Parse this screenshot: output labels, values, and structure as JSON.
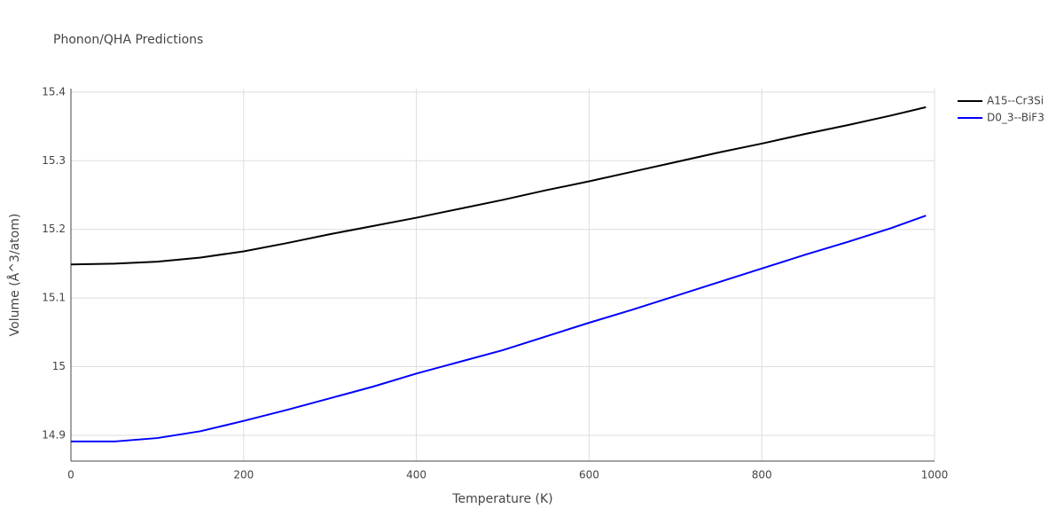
{
  "chart_data": {
    "type": "line",
    "title": "Phonon/QHA Predictions",
    "x_label": "Temperature (K)",
    "y_label": "Volume (Å^3/atom)",
    "x": [
      0,
      50,
      100,
      150,
      200,
      250,
      300,
      350,
      400,
      450,
      500,
      550,
      600,
      650,
      700,
      750,
      800,
      850,
      900,
      950,
      990
    ],
    "series": [
      {
        "name": "A15--Cr3Si",
        "color": "#000000",
        "values": [
          15.149,
          15.15,
          15.153,
          15.159,
          15.168,
          15.18,
          15.193,
          15.205,
          15.217,
          15.23,
          15.243,
          15.257,
          15.27,
          15.284,
          15.298,
          15.312,
          15.325,
          15.339,
          15.352,
          15.366,
          15.378
        ]
      },
      {
        "name": "D0_3--BiF3",
        "color": "#0000ff",
        "values": [
          14.891,
          14.891,
          14.896,
          14.906,
          14.921,
          14.937,
          14.954,
          14.971,
          14.99,
          15.007,
          15.024,
          15.044,
          15.064,
          15.083,
          15.103,
          15.123,
          15.143,
          15.163,
          15.182,
          15.202,
          15.22
        ]
      }
    ],
    "xlim": [
      0,
      1000
    ],
    "xticks": [
      0,
      200,
      400,
      600,
      800,
      1000
    ],
    "ylim": [
      14.8625,
      15.405
    ],
    "yticks": [
      14.9,
      15,
      15.1,
      15.2,
      15.3,
      15.4
    ],
    "grid": true,
    "legend": "top-right"
  }
}
